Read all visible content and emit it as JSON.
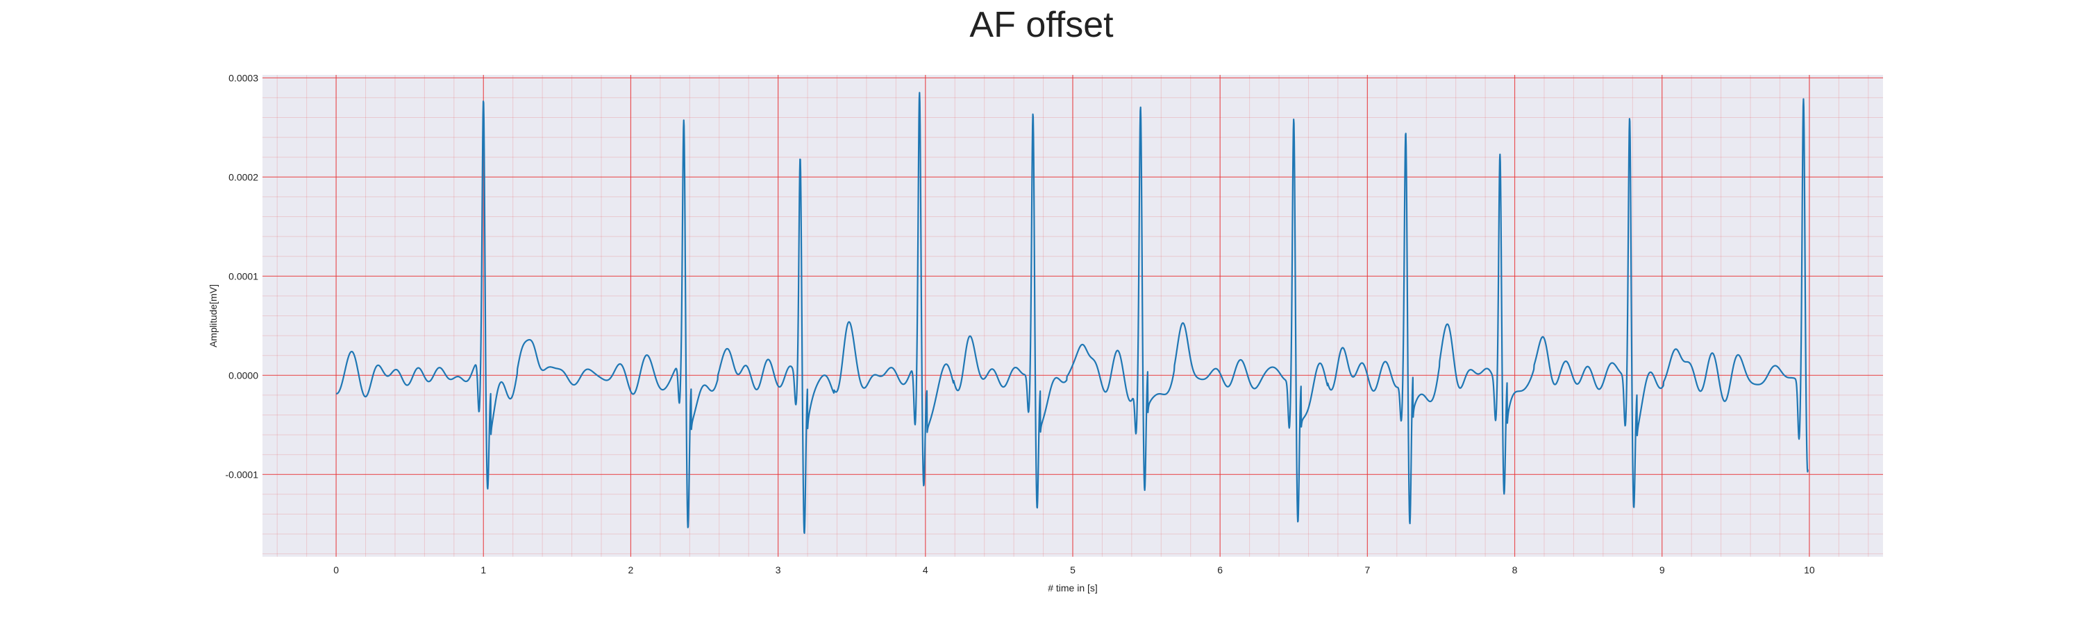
{
  "chart_data": {
    "type": "line",
    "title": "AF offset",
    "xlabel": "# time in [s]",
    "ylabel": "Amplitude[mV]",
    "xlim": [
      -0.5,
      10.5
    ],
    "ylim": [
      -0.000183,
      0.000303
    ],
    "xticks": [
      0,
      1,
      2,
      3,
      4,
      5,
      6,
      7,
      8,
      9,
      10
    ],
    "xtick_labels": [
      "0",
      "1",
      "2",
      "3",
      "4",
      "5",
      "6",
      "7",
      "8",
      "9",
      "10"
    ],
    "yticks": [
      -0.0001,
      0.0,
      0.0001,
      0.0002,
      0.0003
    ],
    "ytick_labels": [
      "-0.0001",
      "0.0000",
      "0.0001",
      "0.0002",
      "0.0003"
    ],
    "grid": "major and minor, red",
    "series_color": "#1f77b4",
    "background_color": "#eaeaf2",
    "grid_color": "#e8363a",
    "series": [
      {
        "x_start": 0.0,
        "x_end": 9.99,
        "r_peaks": [
          {
            "t": 1.0,
            "r": 0.000277,
            "q": -5e-05,
            "s": -0.000105
          },
          {
            "t": 2.36,
            "r": 0.00025,
            "q": -4e-05,
            "s": -0.000155
          },
          {
            "t": 3.15,
            "r": 0.00023,
            "q": -3e-05,
            "s": -0.000152
          },
          {
            "t": 3.96,
            "r": 0.00028,
            "q": -6e-05,
            "s": -0.000109
          },
          {
            "t": 4.73,
            "r": 0.000262,
            "q": -4e-05,
            "s": -0.000133
          },
          {
            "t": 5.46,
            "r": 0.000262,
            "q": -5e-05,
            "s": -0.000133
          },
          {
            "t": 6.5,
            "r": 0.000258,
            "q": -5e-05,
            "s": -0.000152
          },
          {
            "t": 7.26,
            "r": 0.000242,
            "q": -4e-05,
            "s": -0.00016
          },
          {
            "t": 7.9,
            "r": 0.000233,
            "q": -4e-05,
            "s": -0.000117
          },
          {
            "t": 8.78,
            "r": 0.000267,
            "q": -5e-05,
            "s": -0.000123
          },
          {
            "t": 9.96,
            "r": 0.000284,
            "q": -6e-05,
            "s": -9.9e-05
          }
        ],
        "t_waves": [
          {
            "t": 1.34,
            "a": 4.8e-05
          },
          {
            "t": 2.68,
            "a": 2.2e-05
          },
          {
            "t": 3.47,
            "a": 3.5e-05
          },
          {
            "t": 4.29,
            "a": 3e-05
          },
          {
            "t": 5.07,
            "a": 4e-05
          },
          {
            "t": 5.75,
            "a": 4.4e-05
          },
          {
            "t": 6.83,
            "a": 2.1e-05
          },
          {
            "t": 7.56,
            "a": 3.4e-05
          },
          {
            "t": 8.2,
            "a": 3.4e-05
          },
          {
            "t": 9.1,
            "a": 3e-05
          }
        ]
      }
    ]
  }
}
